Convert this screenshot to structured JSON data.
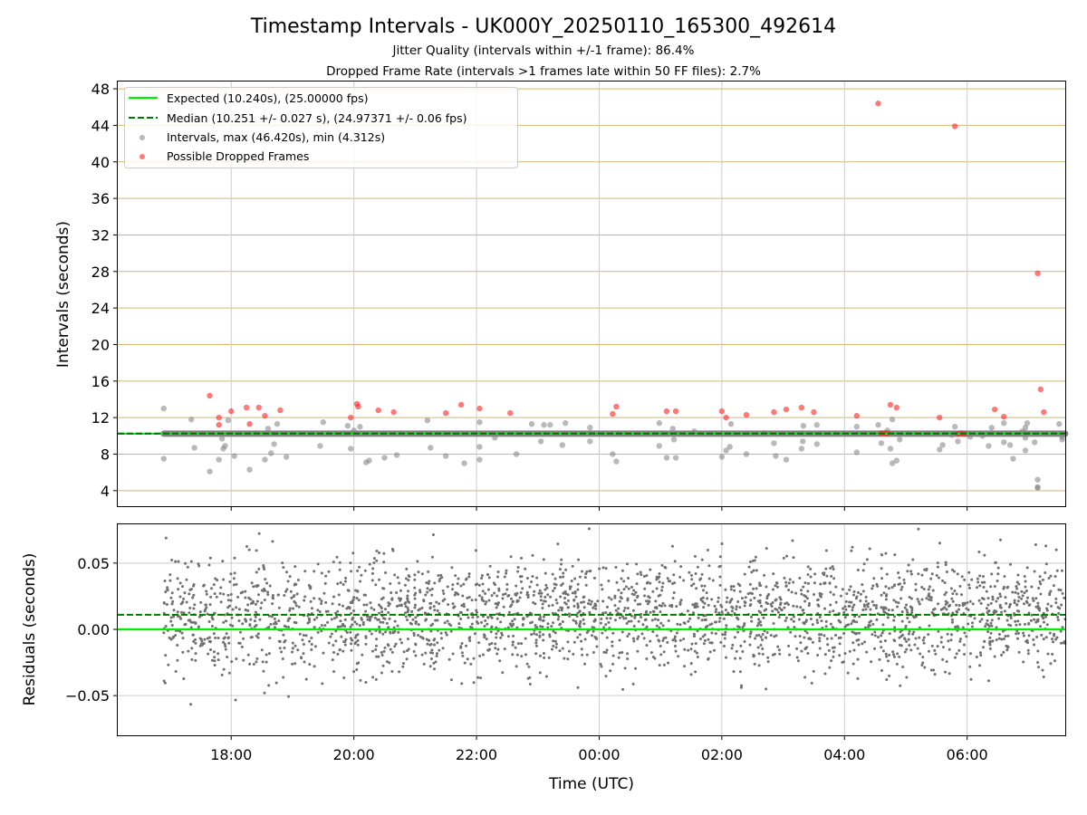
{
  "chart_data": [
    {
      "type": "scatter",
      "title": "Timestamp Intervals - UK000Y_20250110_165300_492614",
      "subtitles": [
        "Jitter Quality (intervals within +/-1 frame): 86.4%",
        "Dropped Frame Rate (intervals >1 frames late within 50 FF files): 2.7%"
      ],
      "ylabel": "Intervals (seconds)",
      "xlim": [
        -7.85,
        7.6
      ],
      "ylim": [
        2.3,
        48.9
      ],
      "yticks": [
        4,
        8,
        12,
        16,
        20,
        24,
        28,
        32,
        36,
        40,
        44,
        48
      ],
      "grid": true,
      "legend_position": "top-left",
      "colors": {
        "expected": "#00ee00",
        "median": "#007700",
        "intervals": "#808080",
        "dropped": "#ff2020",
        "hgrid": "#d4b870",
        "vgrid": "#cccccc"
      },
      "series": [
        {
          "name": "Expected (10.240s), (25.00000 fps)",
          "kind": "hline",
          "y": 10.24
        },
        {
          "name": "Median (10.251 +/- 0.027 s), (24.97371 +/- 0.06 fps)",
          "kind": "hline-dashed",
          "y": 10.251
        },
        {
          "name": "Intervals, max (46.420s), min (4.312s)",
          "kind": "scatter",
          "baseline": {
            "y": 10.24,
            "x_start": -7.1,
            "x_end": 7.6
          },
          "points": [
            [
              -7.1,
              13.0
            ],
            [
              -7.1,
              7.5
            ],
            [
              -6.65,
              11.8
            ],
            [
              -6.6,
              8.7
            ],
            [
              -6.35,
              6.1
            ],
            [
              -6.2,
              7.4
            ],
            [
              -6.15,
              9.7
            ],
            [
              -6.13,
              8.6
            ],
            [
              -6.1,
              8.9
            ],
            [
              -6.05,
              11.7
            ],
            [
              -5.95,
              7.8
            ],
            [
              -5.7,
              6.3
            ],
            [
              -5.6,
              10.3
            ],
            [
              -5.45,
              7.4
            ],
            [
              -5.4,
              10.8
            ],
            [
              -5.35,
              8.1
            ],
            [
              -5.3,
              9.1
            ],
            [
              -5.25,
              11.3
            ],
            [
              -5.1,
              7.7
            ],
            [
              -4.55,
              8.9
            ],
            [
              -4.5,
              11.5
            ],
            [
              -4.1,
              11.1
            ],
            [
              -4.05,
              8.6
            ],
            [
              -4.0,
              10.6
            ],
            [
              -3.9,
              11.0
            ],
            [
              -3.8,
              7.1
            ],
            [
              -3.75,
              7.3
            ],
            [
              -3.5,
              7.6
            ],
            [
              -3.3,
              7.9
            ],
            [
              -2.8,
              11.7
            ],
            [
              -2.75,
              8.7
            ],
            [
              -2.5,
              7.8
            ],
            [
              -2.2,
              7.0
            ],
            [
              -1.95,
              7.4
            ],
            [
              -1.95,
              8.8
            ],
            [
              -1.95,
              11.5
            ],
            [
              -1.7,
              9.8
            ],
            [
              -1.35,
              8.0
            ],
            [
              -1.1,
              11.3
            ],
            [
              -0.95,
              9.4
            ],
            [
              -0.9,
              11.2
            ],
            [
              -0.8,
              11.2
            ],
            [
              -0.6,
              9.0
            ],
            [
              -0.55,
              11.4
            ],
            [
              -0.15,
              10.9
            ],
            [
              -0.15,
              9.4
            ],
            [
              0.22,
              8.0
            ],
            [
              0.28,
              7.2
            ],
            [
              0.98,
              11.4
            ],
            [
              0.98,
              8.9
            ],
            [
              1.1,
              7.6
            ],
            [
              1.2,
              10.8
            ],
            [
              1.22,
              9.6
            ],
            [
              1.25,
              7.6
            ],
            [
              1.55,
              10.5
            ],
            [
              2.0,
              7.7
            ],
            [
              2.07,
              8.4
            ],
            [
              2.13,
              8.8
            ],
            [
              2.15,
              11.3
            ],
            [
              2.4,
              8.0
            ],
            [
              2.7,
              10.3
            ],
            [
              2.85,
              9.2
            ],
            [
              2.88,
              7.8
            ],
            [
              3.05,
              7.4
            ],
            [
              3.2,
              10.2
            ],
            [
              3.3,
              8.6
            ],
            [
              3.32,
              9.4
            ],
            [
              3.33,
              11.1
            ],
            [
              3.55,
              11.2
            ],
            [
              3.55,
              9.1
            ],
            [
              4.2,
              8.2
            ],
            [
              4.2,
              11.0
            ],
            [
              4.55,
              11.2
            ],
            [
              4.6,
              9.2
            ],
            [
              4.7,
              10.6
            ],
            [
              4.75,
              8.6
            ],
            [
              4.78,
              7.0
            ],
            [
              4.78,
              11.8
            ],
            [
              4.85,
              7.3
            ],
            [
              4.9,
              9.6
            ],
            [
              5.55,
              8.5
            ],
            [
              5.6,
              9.0
            ],
            [
              5.75,
              10.1
            ],
            [
              5.8,
              11.0
            ],
            [
              5.85,
              9.4
            ],
            [
              6.05,
              9.9
            ],
            [
              6.25,
              10.0
            ],
            [
              6.35,
              8.9
            ],
            [
              6.4,
              10.9
            ],
            [
              6.6,
              11.4
            ],
            [
              6.6,
              9.3
            ],
            [
              6.7,
              9.0
            ],
            [
              6.75,
              7.5
            ],
            [
              6.9,
              10.5
            ],
            [
              6.95,
              8.4
            ],
            [
              6.95,
              9.8
            ],
            [
              6.95,
              10.9
            ],
            [
              6.98,
              11.4
            ],
            [
              7.1,
              9.3
            ],
            [
              7.15,
              4.3
            ],
            [
              7.15,
              4.4
            ],
            [
              7.15,
              5.2
            ],
            [
              7.5,
              11.3
            ],
            [
              7.55,
              9.9
            ],
            [
              7.55,
              9.6
            ]
          ]
        },
        {
          "name": "Possible Dropped Frames",
          "kind": "scatter",
          "points": [
            [
              -6.35,
              14.4
            ],
            [
              -6.2,
              12.0
            ],
            [
              -6.2,
              11.2
            ],
            [
              -6.0,
              12.7
            ],
            [
              -5.75,
              13.1
            ],
            [
              -5.7,
              11.3
            ],
            [
              -5.55,
              13.1
            ],
            [
              -5.45,
              12.2
            ],
            [
              -5.2,
              12.8
            ],
            [
              -4.05,
              12.0
            ],
            [
              -3.95,
              13.5
            ],
            [
              -3.93,
              13.2
            ],
            [
              -3.6,
              12.8
            ],
            [
              -3.35,
              12.6
            ],
            [
              -2.5,
              12.5
            ],
            [
              -2.25,
              13.4
            ],
            [
              -1.95,
              13.0
            ],
            [
              -1.45,
              12.5
            ],
            [
              0.22,
              12.4
            ],
            [
              0.28,
              13.2
            ],
            [
              1.1,
              12.7
            ],
            [
              1.25,
              12.7
            ],
            [
              2.0,
              12.7
            ],
            [
              2.07,
              12.0
            ],
            [
              2.4,
              12.3
            ],
            [
              2.85,
              12.6
            ],
            [
              3.05,
              12.9
            ],
            [
              3.3,
              13.1
            ],
            [
              3.5,
              12.6
            ],
            [
              4.2,
              12.2
            ],
            [
              4.55,
              46.4
            ],
            [
              4.6,
              10.3
            ],
            [
              4.65,
              10.3
            ],
            [
              4.7,
              10.3
            ],
            [
              4.75,
              13.4
            ],
            [
              4.85,
              13.1
            ],
            [
              5.55,
              12.0
            ],
            [
              5.8,
              43.9
            ],
            [
              5.85,
              10.2
            ],
            [
              5.9,
              10.3
            ],
            [
              5.95,
              10.2
            ],
            [
              6.45,
              12.9
            ],
            [
              6.6,
              12.1
            ],
            [
              7.15,
              27.8
            ],
            [
              7.2,
              15.1
            ],
            [
              7.25,
              12.6
            ]
          ]
        }
      ]
    },
    {
      "type": "scatter",
      "ylabel": "Residuals (seconds)",
      "xlabel": "Time (UTC)",
      "xlim": [
        -7.85,
        7.6
      ],
      "ylim": [
        -0.08,
        0.08
      ],
      "yticks": [
        -0.05,
        0.0,
        0.05
      ],
      "ytick_labels": [
        "−0.05",
        "0.00",
        "0.05"
      ],
      "xticks": [
        -6,
        -4,
        -2,
        0,
        2,
        4,
        6
      ],
      "xtick_labels": [
        "18:00",
        "20:00",
        "22:00",
        "00:00",
        "02:00",
        "04:00",
        "06:00"
      ],
      "grid": true,
      "residual_points": {
        "x_start": -7.1,
        "x_end": 7.6,
        "count": 2600,
        "center": 0.011,
        "spread": 0.022
      },
      "series": [
        {
          "kind": "hline",
          "y": 0.0
        },
        {
          "kind": "hline-dashed",
          "y": 0.011
        }
      ]
    }
  ]
}
